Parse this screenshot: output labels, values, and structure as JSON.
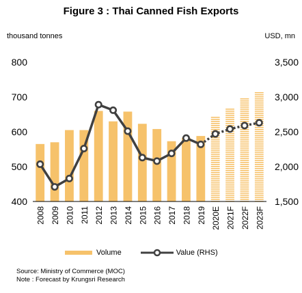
{
  "figure": {
    "title": "Figure 3 : Thai Canned Fish Exports",
    "left_unit": "thousand tonnes",
    "right_unit": "USD, mn",
    "source": "Source: Ministry of Commerce (MOC)",
    "note": "Note : Forecast by Krungsri Research"
  },
  "colors": {
    "bar": "#f6c26b",
    "line": "#404040",
    "marker_fill": "#ffffff"
  },
  "chart_data": {
    "type": "bar",
    "categories": [
      "2008",
      "2009",
      "2010",
      "2011",
      "2012",
      "2013",
      "2014",
      "2015",
      "2016",
      "2017",
      "2018",
      "2019",
      "2020E",
      "2021F",
      "2022F",
      "2023F"
    ],
    "forecast_categories": [
      "2020E",
      "2021F",
      "2022F",
      "2023F"
    ],
    "series": [
      {
        "name": "Volume",
        "type": "bar",
        "axis": "left",
        "values": [
          565,
          570,
          605,
          605,
          660,
          630,
          658,
          623,
          608,
          573,
          583,
          588,
          645,
          668,
          698,
          715
        ]
      },
      {
        "name": "Value (RHS)",
        "type": "line",
        "axis": "right",
        "values": [
          2035,
          1710,
          1830,
          2260,
          2890,
          2810,
          2510,
          2130,
          2080,
          2190,
          2410,
          2320,
          2470,
          2540,
          2590,
          2630
        ]
      }
    ],
    "ylim_left": [
      400,
      800
    ],
    "yticks_left": [
      "400",
      "500",
      "600",
      "700",
      "800"
    ],
    "ylim_right": [
      1500,
      3500
    ],
    "yticks_right": [
      "1,500",
      "2,000",
      "2,500",
      "3,000",
      "3,500"
    ],
    "grid": false,
    "legend": "bottom"
  }
}
